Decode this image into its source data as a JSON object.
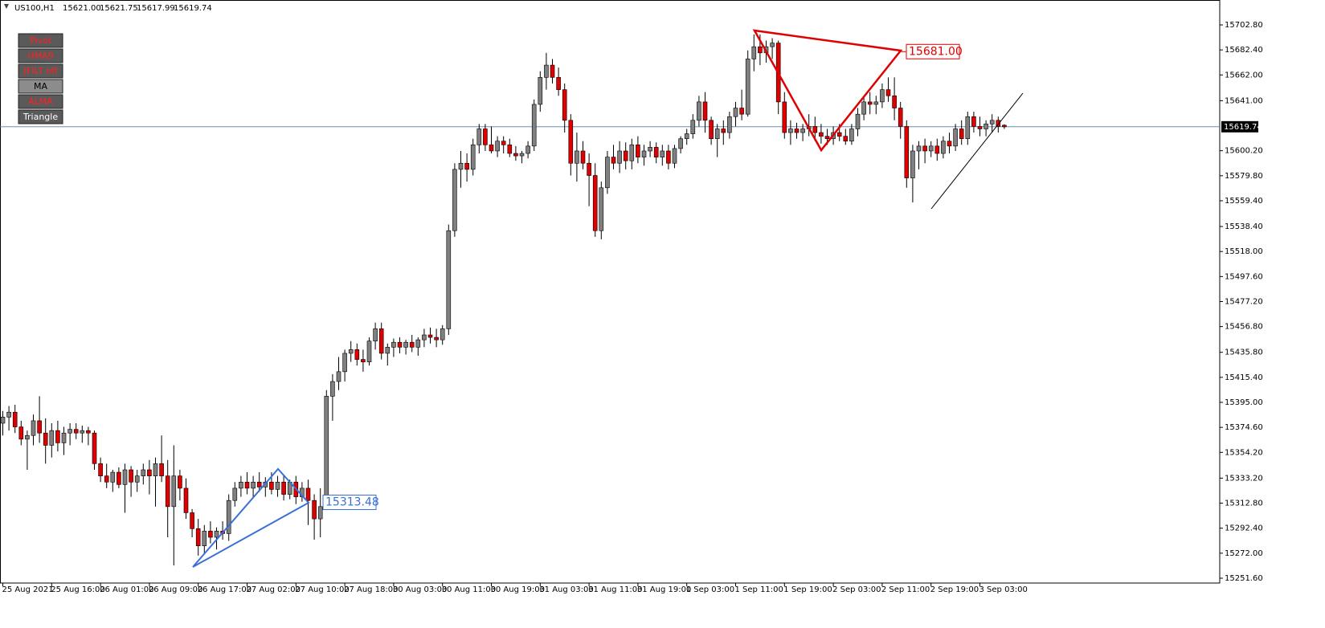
{
  "header": {
    "symbol": "US100,H1",
    "open": "15621.00",
    "high": "15621.75",
    "low": "15617.99",
    "close": "15619.74"
  },
  "buttons": [
    "Pivot",
    "HMA9",
    "JFILT off",
    "MA",
    "ALMA",
    "Triangle"
  ],
  "chart_data": {
    "type": "candlestick",
    "up_color": "#808080",
    "down_color": "#e00000",
    "wick_color": "#000000",
    "ylim": [
      15247.67,
      15720.48
    ],
    "yticks": [
      {
        "value": 15702.8,
        "label": "15702.80"
      },
      {
        "value": 15682.4,
        "label": "15682.40"
      },
      {
        "value": 15662,
        "label": "15662.00"
      },
      {
        "value": 15641,
        "label": "15641.00"
      },
      {
        "value": 15600.2,
        "label": "15600.20"
      },
      {
        "value": 15579.8,
        "label": "15579.80"
      },
      {
        "value": 15559.4,
        "label": "15559.40"
      },
      {
        "value": 15538.4,
        "label": "15538.40"
      },
      {
        "value": 15518,
        "label": "15518.00"
      },
      {
        "value": 15497.6,
        "label": "15497.60"
      },
      {
        "value": 15477.2,
        "label": "15477.20"
      },
      {
        "value": 15456.8,
        "label": "15456.80"
      },
      {
        "value": 15435.8,
        "label": "15435.80"
      },
      {
        "value": 15415.4,
        "label": "15415.40"
      },
      {
        "value": 15395,
        "label": "15395.00"
      },
      {
        "value": 15374.6,
        "label": "15374.60"
      },
      {
        "value": 15354.2,
        "label": "15354.20"
      },
      {
        "value": 15333.2,
        "label": "15333.20"
      },
      {
        "value": 15312.8,
        "label": "15312.80"
      },
      {
        "value": 15292.4,
        "label": "15292.40"
      },
      {
        "value": 15272,
        "label": "15272.00"
      },
      {
        "value": 15251.6,
        "label": "15251.60"
      }
    ],
    "current_price": {
      "value": 15619.74,
      "label": "15619.74"
    },
    "annotations": [
      {
        "value": 15313.48,
        "label": "15313.48",
        "color": "#3a6fd8"
      },
      {
        "value": 15681,
        "label": "15681.00",
        "color": "#e00000"
      }
    ],
    "categories": [
      "25 Aug 2021",
      null,
      null,
      null,
      null,
      null,
      null,
      null,
      "25 Aug 16:00",
      null,
      null,
      null,
      null,
      null,
      null,
      null,
      "26 Aug 01:00",
      null,
      null,
      null,
      null,
      null,
      null,
      null,
      "26 Aug 09:00",
      null,
      null,
      null,
      null,
      null,
      null,
      null,
      "26 Aug 17:00",
      null,
      null,
      null,
      null,
      null,
      null,
      null,
      "27 Aug 02:00",
      null,
      null,
      null,
      null,
      null,
      null,
      null,
      "27 Aug 10:00",
      null,
      null,
      null,
      null,
      null,
      null,
      null,
      "27 Aug 18:00",
      null,
      null,
      null,
      null,
      null,
      null,
      null,
      "30 Aug 03:00",
      null,
      null,
      null,
      null,
      null,
      null,
      null,
      "30 Aug 11:00",
      null,
      null,
      null,
      null,
      null,
      null,
      null,
      "30 Aug 19:00",
      null,
      null,
      null,
      null,
      null,
      null,
      null,
      "31 Aug 03:00",
      null,
      null,
      null,
      null,
      null,
      null,
      null,
      "31 Aug 11:00",
      null,
      null,
      null,
      null,
      null,
      null,
      null,
      "31 Aug 19:00",
      null,
      null,
      null,
      null,
      null,
      null,
      null,
      "1 Sep 03:00",
      null,
      null,
      null,
      null,
      null,
      null,
      null,
      "1 Sep 11:00",
      null,
      null,
      null,
      null,
      null,
      null,
      null,
      "1 Sep 19:00",
      null,
      null,
      null,
      null,
      null,
      null,
      null,
      "2 Sep 03:00",
      null,
      null,
      null,
      null,
      null,
      null,
      null,
      "2 Sep 11:00",
      null,
      null,
      null,
      null,
      null,
      null,
      null,
      "2 Sep 19:00",
      null,
      null,
      null,
      null,
      null,
      null,
      null,
      "3 Sep 03:00",
      null,
      null,
      null,
      null
    ],
    "ohlc": [
      [
        15378,
        15388,
        15368,
        15383
      ],
      [
        15383,
        15392,
        15372,
        15387
      ],
      [
        15387,
        15393,
        15370,
        15375
      ],
      [
        15375,
        15380,
        15360,
        15365
      ],
      [
        15365,
        15372,
        15340,
        15368
      ],
      [
        15368,
        15385,
        15360,
        15380
      ],
      [
        15380,
        15400,
        15362,
        15370
      ],
      [
        15370,
        15382,
        15345,
        15360
      ],
      [
        15360,
        15378,
        15350,
        15372
      ],
      [
        15372,
        15380,
        15355,
        15362
      ],
      [
        15362,
        15375,
        15352,
        15370
      ],
      [
        15370,
        15378,
        15360,
        15373
      ],
      [
        15373,
        15378,
        15365,
        15370
      ],
      [
        15370,
        15376,
        15362,
        15372
      ],
      [
        15372,
        15375,
        15360,
        15370
      ],
      [
        15370,
        15372,
        15340,
        15345
      ],
      [
        15345,
        15350,
        15330,
        15335
      ],
      [
        15335,
        15345,
        15325,
        15330
      ],
      [
        15330,
        15340,
        15322,
        15338
      ],
      [
        15338,
        15342,
        15325,
        15328
      ],
      [
        15328,
        15345,
        15305,
        15340
      ],
      [
        15340,
        15343,
        15318,
        15330
      ],
      [
        15330,
        15340,
        15322,
        15335
      ],
      [
        15335,
        15345,
        15328,
        15340
      ],
      [
        15340,
        15348,
        15320,
        15335
      ],
      [
        15335,
        15350,
        15310,
        15345
      ],
      [
        15345,
        15368,
        15330,
        15335
      ],
      [
        15335,
        15348,
        15285,
        15310
      ],
      [
        15310,
        15360,
        15262,
        15335
      ],
      [
        15335,
        15340,
        15315,
        15325
      ],
      [
        15325,
        15333,
        15300,
        15305
      ],
      [
        15305,
        15308,
        15285,
        15292
      ],
      [
        15292,
        15300,
        15270,
        15278
      ],
      [
        15278,
        15295,
        15272,
        15290
      ],
      [
        15290,
        15298,
        15280,
        15285
      ],
      [
        15285,
        15293,
        15275,
        15290
      ],
      [
        15290,
        15298,
        15283,
        15288
      ],
      [
        15288,
        15320,
        15282,
        15315
      ],
      [
        15315,
        15330,
        15310,
        15325
      ],
      [
        15325,
        15335,
        15318,
        15330
      ],
      [
        15330,
        15338,
        15320,
        15325
      ],
      [
        15325,
        15335,
        15318,
        15330
      ],
      [
        15330,
        15338,
        15322,
        15326
      ],
      [
        15326,
        15334,
        15318,
        15330
      ],
      [
        15330,
        15338,
        15320,
        15324
      ],
      [
        15324,
        15335,
        15318,
        15330
      ],
      [
        15330,
        15336,
        15315,
        15320
      ],
      [
        15320,
        15332,
        15316,
        15330
      ],
      [
        15330,
        15335,
        15312,
        15318
      ],
      [
        15318,
        15330,
        15314,
        15325
      ],
      [
        15325,
        15332,
        15295,
        15315
      ],
      [
        15315,
        15320,
        15283,
        15300
      ],
      [
        15300,
        15325,
        15285,
        15310
      ],
      [
        15310,
        15405,
        15308,
        15400
      ],
      [
        15400,
        15418,
        15380,
        15412
      ],
      [
        15412,
        15432,
        15405,
        15420
      ],
      [
        15420,
        15438,
        15412,
        15435
      ],
      [
        15435,
        15445,
        15428,
        15438
      ],
      [
        15438,
        15443,
        15425,
        15430
      ],
      [
        15430,
        15438,
        15420,
        15428
      ],
      [
        15428,
        15448,
        15425,
        15445
      ],
      [
        15445,
        15460,
        15438,
        15455
      ],
      [
        15455,
        15460,
        15430,
        15435
      ],
      [
        15435,
        15443,
        15425,
        15440
      ],
      [
        15440,
        15447,
        15432,
        15444
      ],
      [
        15444,
        15448,
        15435,
        15440
      ],
      [
        15440,
        15446,
        15434,
        15444
      ],
      [
        15444,
        15450,
        15436,
        15440
      ],
      [
        15440,
        15448,
        15433,
        15446
      ],
      [
        15446,
        15455,
        15440,
        15450
      ],
      [
        15450,
        15456,
        15443,
        15448
      ],
      [
        15448,
        15455,
        15440,
        15446
      ],
      [
        15446,
        15458,
        15442,
        15455
      ],
      [
        15455,
        15540,
        15450,
        15535
      ],
      [
        15535,
        15590,
        15530,
        15585
      ],
      [
        15585,
        15600,
        15570,
        15590
      ],
      [
        15590,
        15598,
        15575,
        15585
      ],
      [
        15585,
        15610,
        15580,
        15605
      ],
      [
        15605,
        15622,
        15598,
        15618
      ],
      [
        15618,
        15622,
        15600,
        15605
      ],
      [
        15605,
        15620,
        15598,
        15600
      ],
      [
        15600,
        15612,
        15595,
        15608
      ],
      [
        15608,
        15612,
        15598,
        15605
      ],
      [
        15605,
        15610,
        15595,
        15598
      ],
      [
        15598,
        15604,
        15592,
        15596
      ],
      [
        15596,
        15600,
        15590,
        15598
      ],
      [
        15598,
        15608,
        15594,
        15604
      ],
      [
        15604,
        15642,
        15600,
        15638
      ],
      [
        15638,
        15665,
        15632,
        15660
      ],
      [
        15660,
        15680,
        15650,
        15670
      ],
      [
        15670,
        15675,
        15655,
        15660
      ],
      [
        15660,
        15668,
        15645,
        15650
      ],
      [
        15650,
        15655,
        15615,
        15625
      ],
      [
        15625,
        15630,
        15580,
        15590
      ],
      [
        15590,
        15615,
        15575,
        15600
      ],
      [
        15600,
        15608,
        15585,
        15590
      ],
      [
        15590,
        15598,
        15555,
        15580
      ],
      [
        15580,
        15590,
        15530,
        15535
      ],
      [
        15535,
        15575,
        15528,
        15570
      ],
      [
        15570,
        15600,
        15565,
        15595
      ],
      [
        15595,
        15605,
        15585,
        15590
      ],
      [
        15590,
        15608,
        15582,
        15600
      ],
      [
        15600,
        15607,
        15585,
        15592
      ],
      [
        15592,
        15610,
        15585,
        15605
      ],
      [
        15605,
        15612,
        15590,
        15595
      ],
      [
        15595,
        15605,
        15588,
        15600
      ],
      [
        15600,
        15608,
        15595,
        15603
      ],
      [
        15603,
        15607,
        15590,
        15595
      ],
      [
        15595,
        15605,
        15588,
        15600
      ],
      [
        15600,
        15605,
        15585,
        15590
      ],
      [
        15590,
        15605,
        15586,
        15602
      ],
      [
        15602,
        15612,
        15598,
        15610
      ],
      [
        15610,
        15618,
        15605,
        15614
      ],
      [
        15614,
        15630,
        15610,
        15625
      ],
      [
        15625,
        15645,
        15620,
        15640
      ],
      [
        15640,
        15648,
        15615,
        15625
      ],
      [
        15625,
        15628,
        15605,
        15610
      ],
      [
        15610,
        15622,
        15595,
        15618
      ],
      [
        15618,
        15625,
        15605,
        15615
      ],
      [
        15615,
        15632,
        15610,
        15628
      ],
      [
        15628,
        15640,
        15620,
        15635
      ],
      [
        15635,
        15650,
        15625,
        15630
      ],
      [
        15630,
        15682,
        15628,
        15675
      ],
      [
        15675,
        15695,
        15665,
        15685
      ],
      [
        15685,
        15695,
        15670,
        15680
      ],
      [
        15680,
        15690,
        15672,
        15685
      ],
      [
        15685,
        15692,
        15675,
        15688
      ],
      [
        15688,
        15690,
        15630,
        15640
      ],
      [
        15640,
        15648,
        15610,
        15615
      ],
      [
        15615,
        15625,
        15605,
        15618
      ],
      [
        15618,
        15623,
        15610,
        15615
      ],
      [
        15615,
        15622,
        15608,
        15618
      ],
      [
        15618,
        15630,
        15612,
        15620
      ],
      [
        15620,
        15628,
        15608,
        15615
      ],
      [
        15615,
        15622,
        15606,
        15612
      ],
      [
        15612,
        15618,
        15605,
        15610
      ],
      [
        15610,
        15620,
        15605,
        15615
      ],
      [
        15615,
        15622,
        15608,
        15612
      ],
      [
        15612,
        15618,
        15605,
        15608
      ],
      [
        15608,
        15622,
        15605,
        15618
      ],
      [
        15618,
        15635,
        15612,
        15630
      ],
      [
        15630,
        15645,
        15625,
        15640
      ],
      [
        15640,
        15648,
        15630,
        15638
      ],
      [
        15638,
        15645,
        15630,
        15640
      ],
      [
        15640,
        15655,
        15635,
        15650
      ],
      [
        15650,
        15660,
        15640,
        15645
      ],
      [
        15645,
        15660,
        15625,
        15635
      ],
      [
        15635,
        15640,
        15610,
        15620
      ],
      [
        15620,
        15625,
        15570,
        15578
      ],
      [
        15578,
        15605,
        15558,
        15600
      ],
      [
        15600,
        15608,
        15585,
        15604
      ],
      [
        15604,
        15610,
        15590,
        15600
      ],
      [
        15600,
        15608,
        15595,
        15604
      ],
      [
        15604,
        15610,
        15592,
        15598
      ],
      [
        15598,
        15612,
        15594,
        15608
      ],
      [
        15608,
        15615,
        15598,
        15604
      ],
      [
        15604,
        15622,
        15600,
        15618
      ],
      [
        15618,
        15625,
        15605,
        15610
      ],
      [
        15610,
        15632,
        15605,
        15628
      ],
      [
        15628,
        15632,
        15615,
        15620
      ],
      [
        15620,
        15628,
        15612,
        15618
      ],
      [
        15618,
        15625,
        15612,
        15622
      ],
      [
        15622,
        15630,
        15615,
        15625
      ],
      [
        15625,
        15628,
        15615,
        15620
      ],
      [
        15621.0,
        15621.75,
        15617.99,
        15619.74
      ]
    ]
  }
}
